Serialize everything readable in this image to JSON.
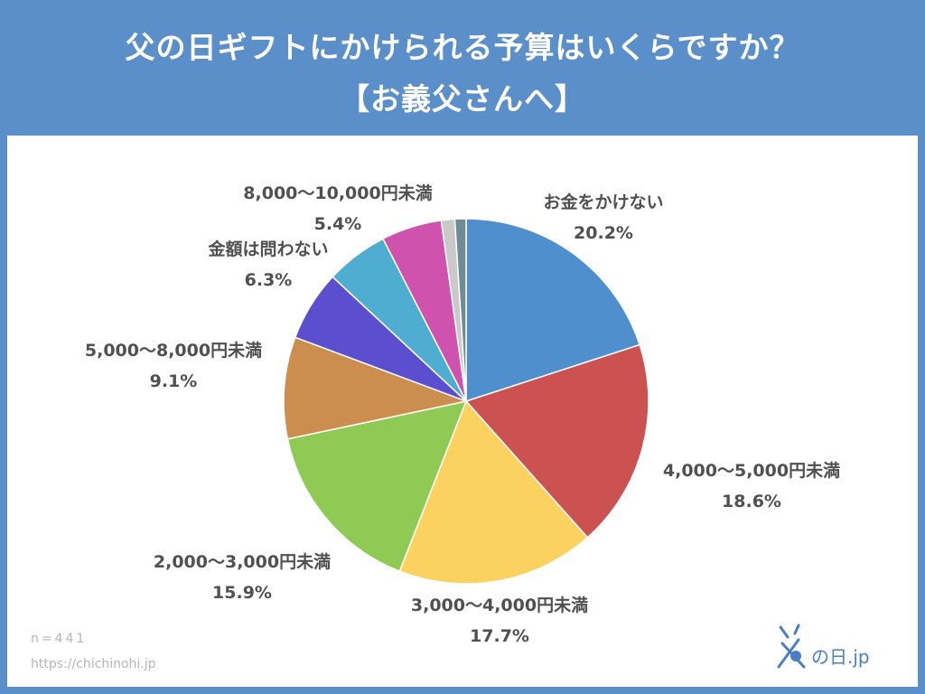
{
  "header": {
    "title_line1": "父の日ギフトにかけられる予算はいくらですか？",
    "title_line2": "【お義父さんへ】"
  },
  "footer": {
    "sample": "n=441",
    "url": "https://chichinohi.jp"
  },
  "logo": {
    "icon": "father-glyph-icon",
    "text": "の日.jp"
  },
  "colors": {
    "header_bg": "#5b8fc9",
    "panel_bg": "#ffffff",
    "label_text": "#505050"
  },
  "chart_data": {
    "type": "pie",
    "start_angle": "12 o'clock",
    "direction": "clockwise",
    "slices": [
      {
        "label": "お金をかけない",
        "value": 20.2,
        "display": "20.2%",
        "color": "#4f8fcd"
      },
      {
        "label": "4,000〜5,000円未満",
        "value": 18.6,
        "display": "18.6%",
        "color": "#cc5252"
      },
      {
        "label": "3,000〜4,000円未満",
        "value": 17.7,
        "display": "17.7%",
        "color": "#fbd15f"
      },
      {
        "label": "2,000〜3,000円未満",
        "value": 15.9,
        "display": "15.9%",
        "color": "#8fca55"
      },
      {
        "label": "5,000〜8,000円未満",
        "value": 9.1,
        "display": "9.1%",
        "color": "#cb8e4e"
      },
      {
        "label": "金額は問わない",
        "value": 6.3,
        "display": "6.3%",
        "color": "#5b4fcf"
      },
      {
        "label": "",
        "value": 5.6,
        "display": "",
        "color": "#4eadd0"
      },
      {
        "label": "8,000〜10,000円未満",
        "value": 5.4,
        "display": "5.4%",
        "color": "#cf52ae"
      },
      {
        "label": "",
        "value": 1.2,
        "display": "",
        "color": "#c9c9c9"
      },
      {
        "label": "",
        "value": 1.0,
        "display": "",
        "color": "#6e8c96"
      }
    ]
  }
}
